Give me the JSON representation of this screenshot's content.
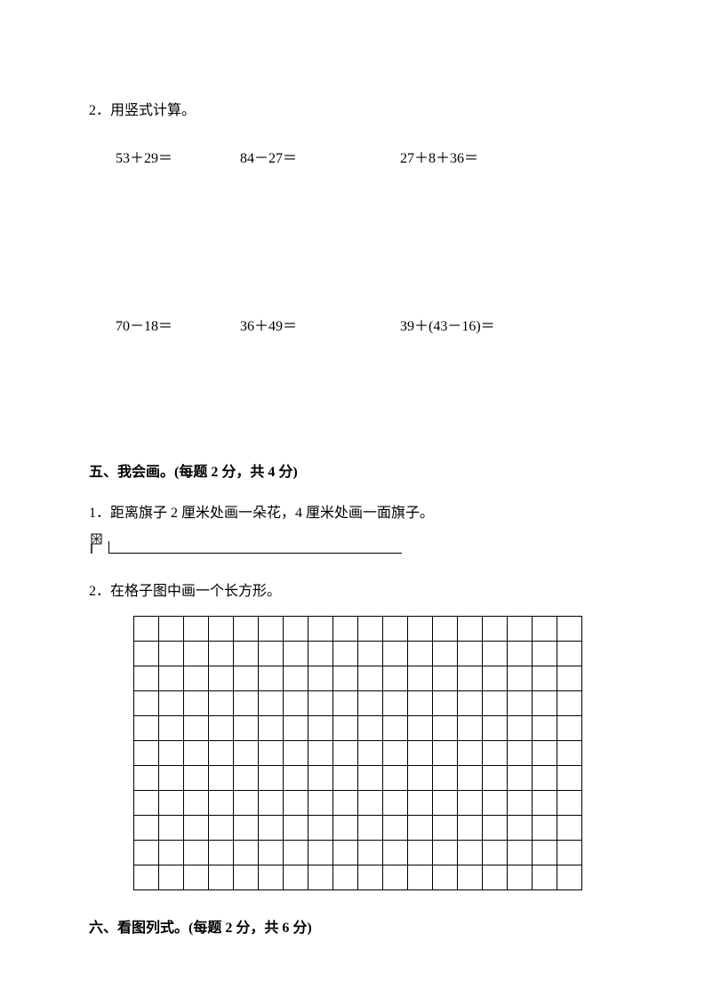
{
  "q2": {
    "header": "2．用竖式计算。",
    "row1": {
      "eq1": "53＋29＝",
      "eq2": "84－27＝",
      "eq3": "27＋8＋36＝"
    },
    "row2": {
      "eq1": "70－18＝",
      "eq2": "36＋49＝",
      "eq3": "39＋(43－16)＝"
    }
  },
  "section5": {
    "header": "五、我会画。(每题 2 分，共 4 分)",
    "q1": "1．距离旗子 2 厘米处画一朵花，4 厘米处画一面旗子。",
    "q2": "2．在格子图中画一个长方形。",
    "grid": {
      "rows": 11,
      "cols": 18,
      "cell_size": 28,
      "border_color": "#000000"
    }
  },
  "section6": {
    "header": "六、看图列式。(每题 2 分，共 6 分)"
  },
  "colors": {
    "background": "#ffffff",
    "text": "#000000"
  },
  "fonts": {
    "body": "SimSun",
    "math": "Times New Roman",
    "base_size": 16
  }
}
